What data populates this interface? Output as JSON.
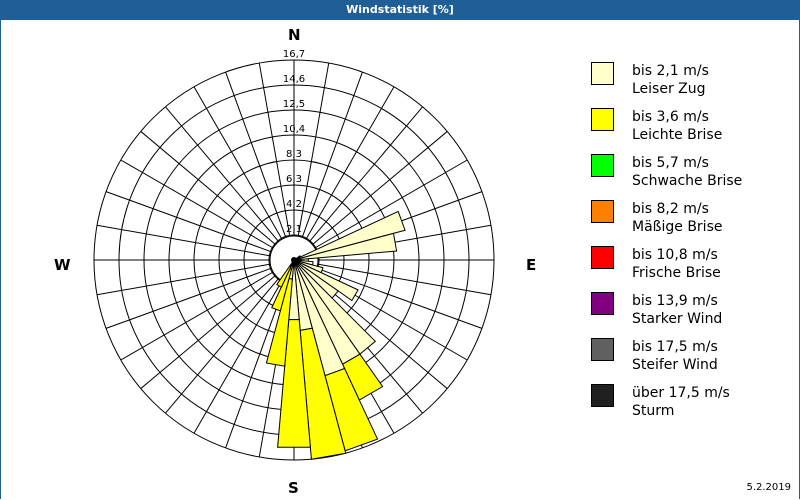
{
  "window": {
    "title": "Windstatistik [%]",
    "date": "5.2.2019"
  },
  "compass": {
    "north": "N",
    "east": "E",
    "south": "S",
    "west": "W"
  },
  "legend": [
    {
      "range": "bis 2,1 m/s",
      "name": "Leiser Zug",
      "color": "#ffffcc"
    },
    {
      "range": "bis 3,6 m/s",
      "name": "Leichte Brise",
      "color": "#ffff00"
    },
    {
      "range": "bis 5,7 m/s",
      "name": "Schwache Brise",
      "color": "#00ff00"
    },
    {
      "range": "bis 8,2 m/s",
      "name": "Mäßige Brise",
      "color": "#ff8000"
    },
    {
      "range": "bis 10,8 m/s",
      "name": "Frische Brise",
      "color": "#ff0000"
    },
    {
      "range": "bis 13,9 m/s",
      "name": "Starker Wind",
      "color": "#800080"
    },
    {
      "range": "bis 17,5 m/s",
      "name": "Steifer Wind",
      "color": "#606060"
    },
    {
      "range": "über 17,5 m/s",
      "name": "Sturm",
      "color": "#202020"
    }
  ],
  "chart_data": {
    "type": "windrose",
    "title": "Windstatistik [%]",
    "unit": "%",
    "radial_ticks": [
      "2,1",
      "4,2",
      "6,3",
      "8,3",
      "10,4",
      "12,5",
      "14,6",
      "16,7"
    ],
    "radial_max": 16.7,
    "sector_width_deg": 10,
    "directions_deg": [
      60,
      70,
      80,
      90,
      100,
      110,
      120,
      130,
      140,
      150,
      160,
      170,
      180,
      190,
      200,
      210
    ],
    "series": [
      {
        "name": "bis 2,1 m/s – Leiser Zug",
        "values": [
          0.6,
          9.6,
          8.6,
          1.2,
          1.6,
          2.5,
          5.9,
          4.5,
          9.6,
          9.6,
          10.0,
          5.9,
          5.0,
          1.6,
          0.8,
          0.6
        ]
      },
      {
        "name": "bis 3,6 m/s – Leichte Brise",
        "values": [
          0,
          0,
          0,
          0,
          0,
          0,
          0,
          0,
          0,
          3.3,
          6.5,
          10.8,
          10.7,
          7.3,
          3.6,
          1.9
        ]
      },
      {
        "name": "bis 5,7 m/s – Schwache Brise",
        "values": [
          0,
          0,
          0,
          0,
          0,
          0,
          0,
          0,
          0,
          0,
          0,
          0,
          0,
          0,
          0,
          0
        ]
      },
      {
        "name": "bis 8,2 m/s – Mäßige Brise",
        "values": [
          0,
          0,
          0,
          0,
          0,
          0,
          0,
          0,
          0,
          0,
          0,
          0,
          0,
          0,
          0,
          0
        ]
      },
      {
        "name": "bis 10,8 m/s – Frische Brise",
        "values": [
          0,
          0,
          0,
          0,
          0,
          0,
          0,
          0,
          0,
          0,
          0,
          0,
          0,
          0,
          0,
          0
        ]
      },
      {
        "name": "bis 13,9 m/s – Starker Wind",
        "values": [
          0,
          0,
          0,
          0,
          0,
          0,
          0,
          0,
          0,
          0,
          0,
          0,
          0,
          0,
          0,
          0
        ]
      },
      {
        "name": "bis 17,5 m/s – Steifer Wind",
        "values": [
          0,
          0,
          0,
          0,
          0,
          0,
          0,
          0,
          0,
          0,
          0,
          0,
          0,
          0,
          0,
          0
        ]
      },
      {
        "name": "über 17,5 m/s – Sturm",
        "values": [
          0,
          0,
          0,
          0,
          0,
          0,
          0,
          0,
          0,
          0,
          0,
          0,
          0,
          0,
          0,
          0
        ]
      }
    ],
    "legend_position": "right",
    "grid": true
  }
}
